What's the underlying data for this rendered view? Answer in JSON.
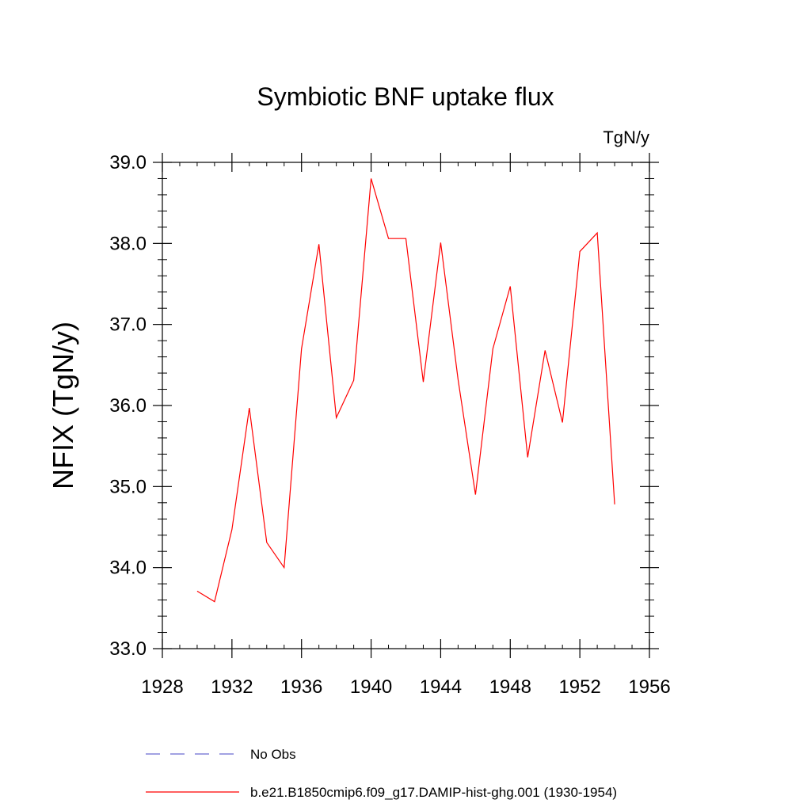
{
  "chart_data": {
    "type": "line",
    "title": "Symbiotic BNF uptake flux",
    "units_label": "TgN/y",
    "xlabel": "",
    "ylabel": "NFIX  (TgN/y)",
    "xlim": [
      1928,
      1956
    ],
    "ylim": [
      33.0,
      39.0
    ],
    "x_ticks": [
      "1928",
      "1932",
      "1936",
      "1940",
      "1944",
      "1948",
      "1952",
      "1956"
    ],
    "y_ticks": [
      "33.0",
      "34.0",
      "35.0",
      "36.0",
      "37.0",
      "38.0",
      "39.0"
    ],
    "grid": false,
    "legend_position": "bottom",
    "series": [
      {
        "name": "b.e21.B1850cmip6.f09_g17.DAMIP-hist-ghg.001 (1930-1954)",
        "color": "#ff0000",
        "style": "solid",
        "x": [
          1930,
          1931,
          1932,
          1933,
          1934,
          1935,
          1936,
          1937,
          1938,
          1939,
          1940,
          1941,
          1942,
          1943,
          1944,
          1945,
          1946,
          1947,
          1948,
          1949,
          1950,
          1951,
          1952,
          1953,
          1954
        ],
        "values": [
          33.71,
          33.58,
          34.47,
          35.97,
          34.31,
          34.0,
          36.7,
          37.99,
          35.85,
          36.31,
          38.8,
          38.06,
          38.06,
          36.29,
          38.01,
          36.32,
          34.9,
          36.7,
          37.47,
          35.36,
          36.68,
          35.79,
          37.9,
          38.13,
          34.78
        ]
      }
    ],
    "legend": [
      {
        "label": "No Obs",
        "color": "#6a6ad0",
        "style": "dashed"
      },
      {
        "label": "b.e21.B1850cmip6.f09_g17.DAMIP-hist-ghg.001 (1930-1954)",
        "color": "#ff0000",
        "style": "solid"
      }
    ]
  }
}
